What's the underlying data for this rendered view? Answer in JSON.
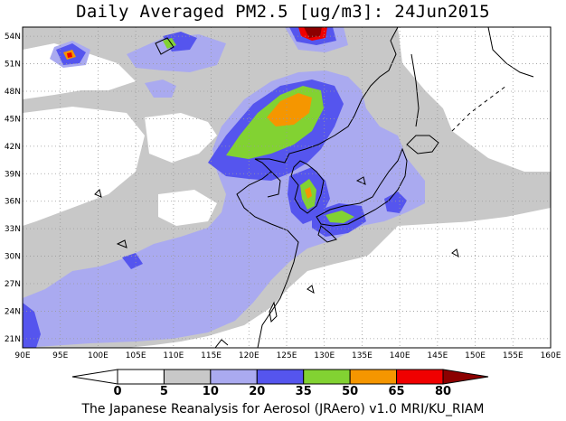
{
  "title": "Daily Averaged PM2.5 [ug/m3]: 24Jun2015",
  "credit": "The Japanese Reanalysis for Aerosol (JRAero) v1.0 MRI/KU_RIAM",
  "map": {
    "lon_min": 90,
    "lon_max": 160,
    "lat_min": 20,
    "lat_max": 55,
    "lon_ticks": [
      "90E",
      "95E",
      "100E",
      "105E",
      "110E",
      "115E",
      "120E",
      "125E",
      "130E",
      "135E",
      "140E",
      "145E",
      "150E",
      "155E",
      "160E"
    ],
    "lat_ticks": [
      "21N",
      "24N",
      "27N",
      "30N",
      "33N",
      "36N",
      "39N",
      "42N",
      "45N",
      "48N",
      "51N",
      "54N"
    ],
    "grid": "dotted"
  },
  "colorbar": {
    "labels": [
      "0",
      "5",
      "10",
      "20",
      "35",
      "50",
      "65",
      "80"
    ],
    "colors": [
      "#ffffff",
      "#c8c8c8",
      "#aaaaf0",
      "#5555ee",
      "#82d232",
      "#f59600",
      "#f00000",
      "#8c0000"
    ]
  },
  "colors": {
    "under_5": "#ffffff",
    "c5_10": "#c8c8c8",
    "c10_20": "#aaaaf0",
    "c20_35": "#5555ee",
    "c35_50": "#82d232",
    "c50_65": "#f59600",
    "c65_80": "#f00000",
    "over_80": "#8c0000"
  }
}
